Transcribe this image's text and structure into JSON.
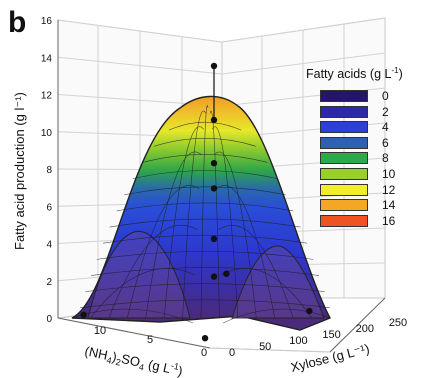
{
  "panel_label": "b",
  "chart_data": {
    "type": "surface3d",
    "title": "",
    "zlabel": "Fatty acid production (g l⁻¹)",
    "xlabel_parts": {
      "pre": "(NH",
      "sub1": "4",
      "mid": ")",
      "sub2": "2",
      "mid2": "SO",
      "sub3": "4",
      "post": " (g L",
      "sup": "-1",
      "end": ")"
    },
    "ylabel": "Xylose (g L⁻¹)",
    "zlim": [
      0,
      16
    ],
    "zticks": [
      "0",
      "2",
      "4",
      "6",
      "8",
      "10",
      "12",
      "14",
      "16"
    ],
    "xticks": [
      "10",
      "5",
      "0"
    ],
    "yticks": [
      "0",
      "50",
      "100",
      "150",
      "200",
      "250"
    ],
    "xlim": [
      0,
      12
    ],
    "ylim": [
      0,
      250
    ],
    "surface_peak": {
      "ammonium_sulfate": 7,
      "xylose": 120,
      "fatty_acids": 12
    },
    "data_points": [
      {
        "ammonium_sulfate": 7,
        "xylose": 120,
        "fatty_acids": 14
      },
      {
        "ammonium_sulfate": 7,
        "xylose": 120,
        "fatty_acids": 11
      },
      {
        "ammonium_sulfate": 7,
        "xylose": 120,
        "fatty_acids": 8.6
      },
      {
        "ammonium_sulfate": 7,
        "xylose": 120,
        "fatty_acids": 7.2
      },
      {
        "ammonium_sulfate": 7,
        "xylose": 120,
        "fatty_acids": 4.4
      },
      {
        "ammonium_sulfate": 7,
        "xylose": 120,
        "fatty_acids": 2.3
      },
      {
        "ammonium_sulfate": 12,
        "xylose": 20,
        "fatty_acids": 0
      },
      {
        "ammonium_sulfate": 12,
        "xylose": 230,
        "fatty_acids": 0.5
      },
      {
        "ammonium_sulfate": 2,
        "xylose": 30,
        "fatty_acids": 0
      },
      {
        "ammonium_sulfate": 2,
        "xylose": 200,
        "fatty_acids": 0
      }
    ]
  },
  "legend": {
    "title": "Fatty acids (g L",
    "title_sup": "-1",
    "title_end": ")",
    "entries": [
      {
        "label": "0",
        "color": "#24156b"
      },
      {
        "label": "2",
        "color": "#2d28a8"
      },
      {
        "label": "4",
        "color": "#2c3fd6"
      },
      {
        "label": "6",
        "color": "#2a64b0"
      },
      {
        "label": "8",
        "color": "#2ea848"
      },
      {
        "label": "10",
        "color": "#98cf2c"
      },
      {
        "label": "12",
        "color": "#f2ee25"
      },
      {
        "label": "14",
        "color": "#f4a624"
      },
      {
        "label": "16",
        "color": "#ee5321"
      }
    ]
  }
}
